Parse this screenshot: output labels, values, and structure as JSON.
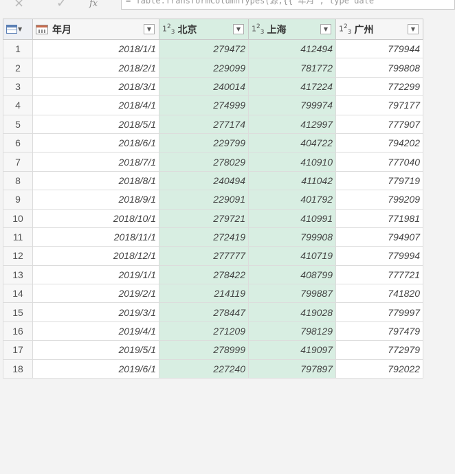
{
  "formula_bar": {
    "back_icon": "×",
    "check_icon": "✓",
    "fx_label": "fx",
    "formula": "= Table.TransformColumnTypes(源,{{\"年月\", type date"
  },
  "columns": [
    {
      "name": "年月",
      "type": "date",
      "type_icon": "calendar-icon"
    },
    {
      "name": "北京",
      "type": "whole-number",
      "type_icon": "123"
    },
    {
      "name": "上海",
      "type": "whole-number",
      "type_icon": "123"
    },
    {
      "name": "广州",
      "type": "whole-number",
      "type_icon": "123"
    }
  ],
  "rows": [
    {
      "n": "1",
      "date": "2018/1/1",
      "bj": "279472",
      "sh": "412494",
      "gz": "779944"
    },
    {
      "n": "2",
      "date": "2018/2/1",
      "bj": "229099",
      "sh": "781772",
      "gz": "799808"
    },
    {
      "n": "3",
      "date": "2018/3/1",
      "bj": "240014",
      "sh": "417224",
      "gz": "772299"
    },
    {
      "n": "4",
      "date": "2018/4/1",
      "bj": "274999",
      "sh": "799974",
      "gz": "797177"
    },
    {
      "n": "5",
      "date": "2018/5/1",
      "bj": "277174",
      "sh": "412997",
      "gz": "777907"
    },
    {
      "n": "6",
      "date": "2018/6/1",
      "bj": "229799",
      "sh": "404722",
      "gz": "794202"
    },
    {
      "n": "7",
      "date": "2018/7/1",
      "bj": "278029",
      "sh": "410910",
      "gz": "777040"
    },
    {
      "n": "8",
      "date": "2018/8/1",
      "bj": "240494",
      "sh": "411042",
      "gz": "779719"
    },
    {
      "n": "9",
      "date": "2018/9/1",
      "bj": "229091",
      "sh": "401792",
      "gz": "799209"
    },
    {
      "n": "10",
      "date": "2018/10/1",
      "bj": "279721",
      "sh": "410991",
      "gz": "771981"
    },
    {
      "n": "11",
      "date": "2018/11/1",
      "bj": "272419",
      "sh": "799908",
      "gz": "794907"
    },
    {
      "n": "12",
      "date": "2018/12/1",
      "bj": "277777",
      "sh": "410719",
      "gz": "779994"
    },
    {
      "n": "13",
      "date": "2019/1/1",
      "bj": "278422",
      "sh": "408799",
      "gz": "777721"
    },
    {
      "n": "14",
      "date": "2019/2/1",
      "bj": "214119",
      "sh": "799887",
      "gz": "741820"
    },
    {
      "n": "15",
      "date": "2019/3/1",
      "bj": "278447",
      "sh": "419028",
      "gz": "779997"
    },
    {
      "n": "16",
      "date": "2019/4/1",
      "bj": "271209",
      "sh": "798129",
      "gz": "797479"
    },
    {
      "n": "17",
      "date": "2019/5/1",
      "bj": "278999",
      "sh": "419097",
      "gz": "772979"
    },
    {
      "n": "18",
      "date": "2019/6/1",
      "bj": "227240",
      "sh": "797897",
      "gz": "792022"
    }
  ],
  "selected_columns": [
    "北京",
    "上海"
  ],
  "colors": {
    "selected_bg": "#d8eee2",
    "background": "#f3f3f3"
  }
}
